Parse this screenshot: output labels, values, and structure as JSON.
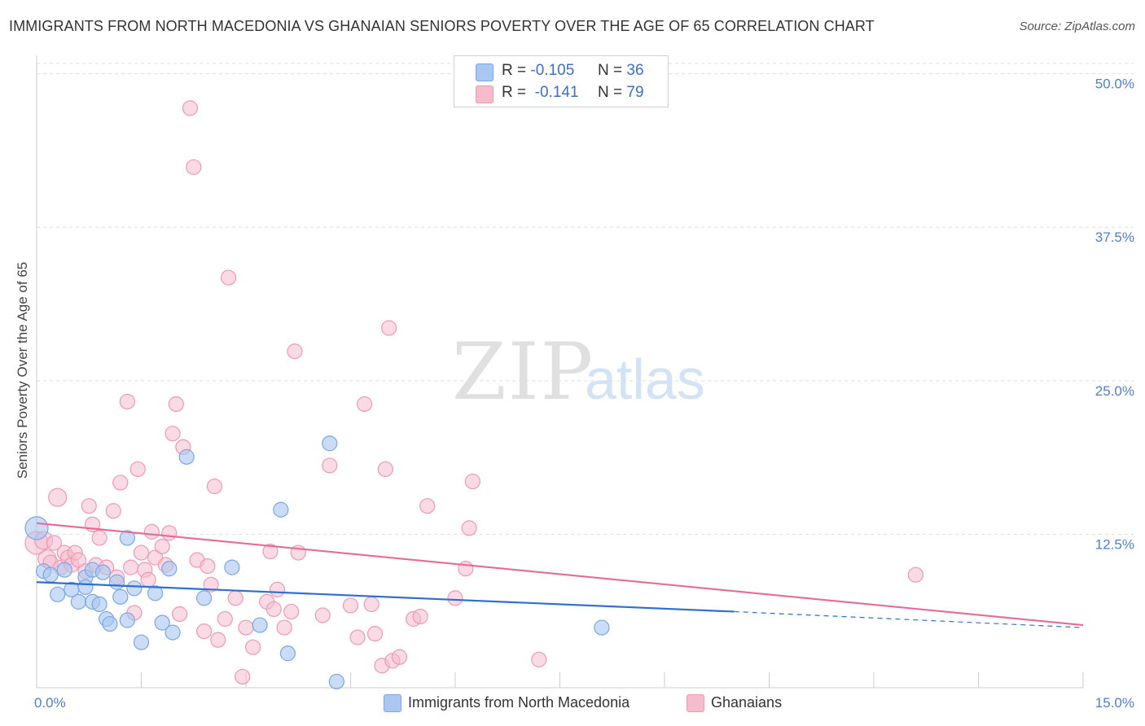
{
  "header": {
    "title": "IMMIGRANTS FROM NORTH MACEDONIA VS GHANAIAN SENIORS POVERTY OVER THE AGE OF 65 CORRELATION CHART",
    "source": "Source: ZipAtlas.com"
  },
  "watermark": {
    "zip": "ZIP",
    "atlas": "atlas"
  },
  "legend": {
    "rows": [
      {
        "r_label": "R =",
        "r_value": "-0.105",
        "n_label": "N =",
        "n_value": "36"
      },
      {
        "r_label": "R =",
        "r_value": "-0.141",
        "n_label": "N =",
        "n_value": "79"
      }
    ]
  },
  "colors": {
    "blue_fill": "#a9c7f0",
    "blue_stroke": "#7aa7e4",
    "blue_line": "#2f6fcf",
    "pink_fill": "#f6bccd",
    "pink_stroke": "#ee9ab4",
    "pink_line": "#e66b97",
    "grid": "#dddddd",
    "tick_text": "#4f7fcf"
  },
  "chart_data": {
    "type": "scatter",
    "title": "IMMIGRANTS FROM NORTH MACEDONIA VS GHANAIAN SENIORS POVERTY OVER THE AGE OF 65 CORRELATION CHART",
    "xlabel": "",
    "ylabel": "Seniors Poverty Over the Age of 65",
    "xlim": [
      0,
      15
    ],
    "ylim": [
      0,
      51.5
    ],
    "x_tick_labels": [
      "0.0%",
      "15.0%"
    ],
    "y_ticks": [
      12.5,
      25.0,
      37.5,
      50.0
    ],
    "y_tick_labels": [
      "12.5%",
      "25.0%",
      "37.5%",
      "50.0%"
    ],
    "grid": true,
    "legend_position": "top-center",
    "series": [
      {
        "name": "Immigrants from North Macedonia",
        "r": -0.105,
        "n": 36,
        "trend": {
          "x_start": 0.0,
          "y_start": 8.6,
          "x_end": 10.0,
          "y_end": 6.2,
          "dashed_to_x": 15.0,
          "dashed_to_y": 4.9
        },
        "points": [
          [
            0.0,
            13.0,
            14
          ],
          [
            0.1,
            9.5,
            9
          ],
          [
            0.2,
            9.2,
            9
          ],
          [
            0.3,
            7.6,
            9
          ],
          [
            0.4,
            9.6,
            9
          ],
          [
            0.5,
            8.0,
            9
          ],
          [
            0.6,
            7.0,
            9
          ],
          [
            0.7,
            9.0,
            9
          ],
          [
            0.7,
            8.2,
            9
          ],
          [
            0.8,
            9.6,
            9
          ],
          [
            0.8,
            7.0,
            9
          ],
          [
            0.9,
            6.8,
            9
          ],
          [
            0.95,
            9.4,
            9
          ],
          [
            1.0,
            5.6,
            9
          ],
          [
            1.05,
            5.2,
            9
          ],
          [
            1.15,
            8.6,
            9
          ],
          [
            1.2,
            7.4,
            9
          ],
          [
            1.3,
            5.5,
            9
          ],
          [
            1.3,
            12.2,
            9
          ],
          [
            1.4,
            8.1,
            9
          ],
          [
            1.5,
            3.7,
            9
          ],
          [
            1.7,
            7.7,
            9
          ],
          [
            1.8,
            5.3,
            9
          ],
          [
            1.9,
            9.7,
            9
          ],
          [
            1.95,
            4.5,
            9
          ],
          [
            2.15,
            18.8,
            9
          ],
          [
            2.4,
            7.3,
            9
          ],
          [
            2.8,
            9.8,
            9
          ],
          [
            3.2,
            5.1,
            9
          ],
          [
            3.5,
            14.5,
            9
          ],
          [
            3.6,
            2.8,
            9
          ],
          [
            4.2,
            19.9,
            9
          ],
          [
            4.3,
            0.5,
            9
          ],
          [
            8.1,
            4.9,
            9
          ]
        ]
      },
      {
        "name": "Ghanaians",
        "r": -0.141,
        "n": 79,
        "trend": {
          "x_start": 0.0,
          "y_start": 13.4,
          "x_end": 15.0,
          "y_end": 5.1
        },
        "points": [
          [
            0.0,
            11.8,
            14
          ],
          [
            0.1,
            12.0,
            11
          ],
          [
            0.15,
            10.5,
            11
          ],
          [
            0.2,
            10.2,
            9
          ],
          [
            0.25,
            11.8,
            9
          ],
          [
            0.3,
            15.5,
            11
          ],
          [
            0.35,
            9.8,
            9
          ],
          [
            0.4,
            11.0,
            9
          ],
          [
            0.45,
            10.6,
            9
          ],
          [
            0.5,
            10.0,
            9
          ],
          [
            0.55,
            11.0,
            9
          ],
          [
            0.6,
            10.4,
            9
          ],
          [
            0.7,
            9.5,
            9
          ],
          [
            0.75,
            14.8,
            9
          ],
          [
            0.8,
            13.3,
            9
          ],
          [
            0.85,
            10.0,
            9
          ],
          [
            0.9,
            12.2,
            9
          ],
          [
            1.0,
            9.8,
            9
          ],
          [
            1.1,
            14.4,
            9
          ],
          [
            1.15,
            9.0,
            9
          ],
          [
            1.2,
            16.7,
            9
          ],
          [
            1.3,
            23.3,
            9
          ],
          [
            1.35,
            9.8,
            9
          ],
          [
            1.4,
            6.1,
            9
          ],
          [
            1.45,
            17.8,
            9
          ],
          [
            1.5,
            11.0,
            9
          ],
          [
            1.55,
            9.6,
            9
          ],
          [
            1.6,
            8.8,
            9
          ],
          [
            1.65,
            12.7,
            9
          ],
          [
            1.7,
            10.6,
            9
          ],
          [
            1.8,
            11.5,
            9
          ],
          [
            1.85,
            10.0,
            9
          ],
          [
            1.9,
            12.6,
            9
          ],
          [
            1.95,
            20.7,
            9
          ],
          [
            2.0,
            23.1,
            9
          ],
          [
            2.05,
            6.0,
            9
          ],
          [
            2.1,
            19.6,
            9
          ],
          [
            2.2,
            47.2,
            9
          ],
          [
            2.25,
            42.4,
            9
          ],
          [
            2.3,
            10.4,
            9
          ],
          [
            2.4,
            4.6,
            9
          ],
          [
            2.45,
            9.9,
            9
          ],
          [
            2.5,
            8.4,
            9
          ],
          [
            2.55,
            16.4,
            9
          ],
          [
            2.6,
            3.9,
            9
          ],
          [
            2.7,
            5.6,
            9
          ],
          [
            2.75,
            33.4,
            9
          ],
          [
            2.85,
            7.3,
            9
          ],
          [
            2.95,
            0.9,
            9
          ],
          [
            3.0,
            4.9,
            9
          ],
          [
            3.1,
            3.3,
            9
          ],
          [
            3.3,
            7.0,
            9
          ],
          [
            3.35,
            11.1,
            9
          ],
          [
            3.4,
            6.4,
            9
          ],
          [
            3.45,
            8.0,
            9
          ],
          [
            3.55,
            4.9,
            9
          ],
          [
            3.65,
            6.2,
            9
          ],
          [
            3.7,
            27.4,
            9
          ],
          [
            3.75,
            11.0,
            9
          ],
          [
            4.1,
            5.9,
            9
          ],
          [
            4.2,
            18.1,
            9
          ],
          [
            4.5,
            6.7,
            9
          ],
          [
            4.6,
            4.1,
            9
          ],
          [
            4.7,
            23.1,
            9
          ],
          [
            4.8,
            6.8,
            9
          ],
          [
            4.85,
            4.4,
            9
          ],
          [
            4.95,
            1.8,
            9
          ],
          [
            5.0,
            17.8,
            9
          ],
          [
            5.05,
            29.3,
            9
          ],
          [
            5.1,
            2.2,
            9
          ],
          [
            5.2,
            2.5,
            9
          ],
          [
            5.4,
            5.6,
            9
          ],
          [
            5.5,
            5.8,
            9
          ],
          [
            5.6,
            14.8,
            9
          ],
          [
            6.0,
            7.3,
            9
          ],
          [
            6.15,
            9.7,
            9
          ],
          [
            6.2,
            13.0,
            9
          ],
          [
            6.25,
            16.8,
            9
          ],
          [
            7.2,
            2.3,
            9
          ],
          [
            12.6,
            9.2,
            9
          ]
        ]
      }
    ]
  },
  "bottom_legend": [
    {
      "label": "Immigrants from North Macedonia"
    },
    {
      "label": "Ghanaians"
    }
  ]
}
